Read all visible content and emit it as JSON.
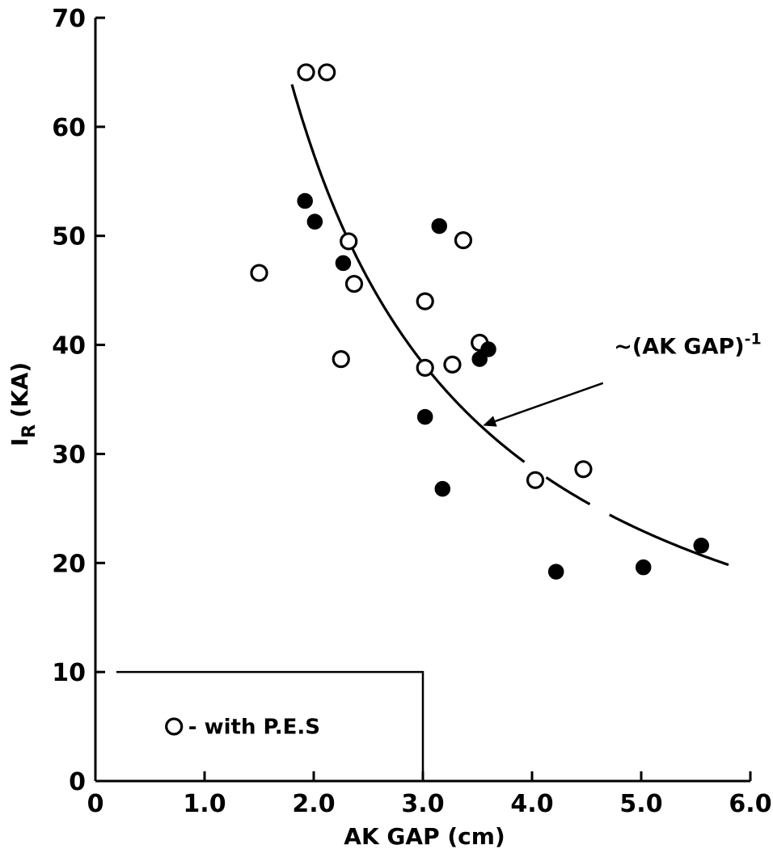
{
  "chart_data": {
    "type": "scatter",
    "title": "",
    "xlabel": "AK GAP (cm)",
    "ylabel_main": "I",
    "ylabel_sub": "R",
    "ylabel_rest": "(KA)",
    "xlim": [
      0,
      6.0
    ],
    "ylim": [
      0,
      70
    ],
    "x_ticks": [
      0,
      1.0,
      2.0,
      3.0,
      4.0,
      5.0,
      6.0
    ],
    "x_tick_labels": [
      "0",
      "1.0",
      "2.0",
      "3.0",
      "4.0",
      "5.0",
      "6.0"
    ],
    "y_ticks": [
      0,
      10,
      20,
      30,
      40,
      50,
      60,
      70
    ],
    "y_tick_labels": [
      "0",
      "10",
      "20",
      "30",
      "40",
      "50",
      "60",
      "70"
    ],
    "grid": false,
    "series": [
      {
        "marker": "open-circle",
        "points": [
          {
            "x": 1.93,
            "y": 65.0
          },
          {
            "x": 2.12,
            "y": 65.0
          },
          {
            "x": 1.5,
            "y": 46.6
          },
          {
            "x": 2.32,
            "y": 49.5
          },
          {
            "x": 2.37,
            "y": 45.6
          },
          {
            "x": 2.25,
            "y": 38.7
          },
          {
            "x": 3.02,
            "y": 44.0
          },
          {
            "x": 3.02,
            "y": 37.9
          },
          {
            "x": 3.27,
            "y": 38.2
          },
          {
            "x": 3.37,
            "y": 49.6
          },
          {
            "x": 3.52,
            "y": 40.2
          },
          {
            "x": 4.03,
            "y": 27.6
          },
          {
            "x": 4.47,
            "y": 28.6
          }
        ]
      },
      {
        "marker": "filled-circle",
        "points": [
          {
            "x": 1.92,
            "y": 53.2
          },
          {
            "x": 2.01,
            "y": 51.3
          },
          {
            "x": 2.27,
            "y": 47.5
          },
          {
            "x": 3.15,
            "y": 50.9
          },
          {
            "x": 3.02,
            "y": 33.4
          },
          {
            "x": 3.18,
            "y": 26.8
          },
          {
            "x": 3.52,
            "y": 38.7
          },
          {
            "x": 3.6,
            "y": 39.6
          },
          {
            "x": 4.22,
            "y": 19.2
          },
          {
            "x": 5.02,
            "y": 19.6
          },
          {
            "x": 5.55,
            "y": 21.6
          }
        ]
      }
    ],
    "fit_curve": {
      "form": "k / x",
      "k": 115,
      "x_range": [
        1.8,
        5.8
      ],
      "dash_gaps_x": [
        [
          3.93,
          4.12
        ],
        [
          4.53,
          4.7
        ]
      ]
    },
    "annotation": {
      "text_prefix": "~(AK GAP)",
      "superscript": "-1",
      "arrow_from": {
        "x": 4.65,
        "y": 36.5
      },
      "arrow_to": {
        "x": 3.55,
        "y": 32.6
      }
    },
    "legend": {
      "symbol": "open-circle",
      "text": "- with P.E.S",
      "box_x_range": [
        0,
        3.0
      ],
      "box_y_top": 10
    }
  }
}
